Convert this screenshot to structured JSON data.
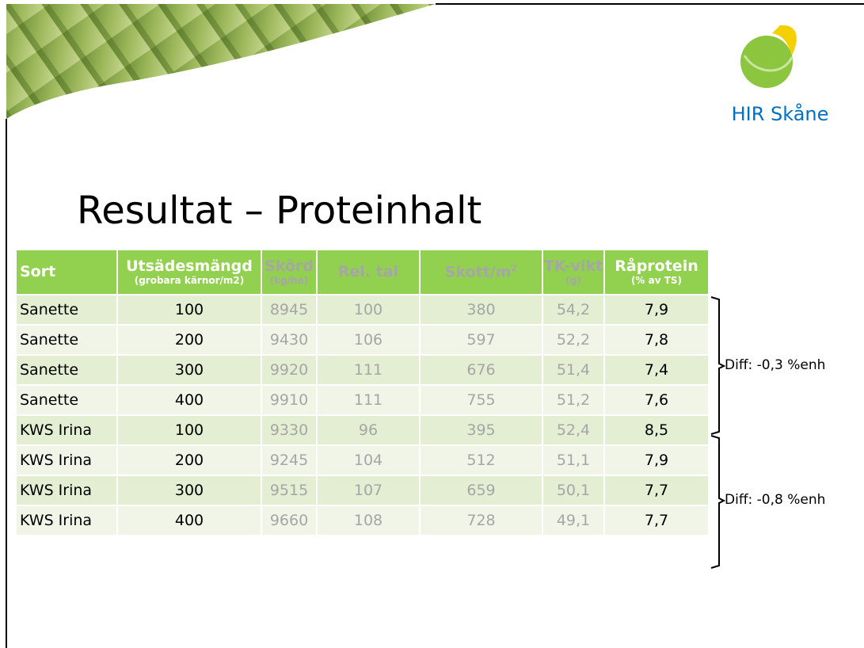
{
  "logo": {
    "text": "HIR Skåne"
  },
  "title": "Resultat – Proteinhalt",
  "table": {
    "header": [
      {
        "title": "Sort"
      },
      {
        "title": "Utsädesmängd",
        "sub": "(grobara kärnor/m2)"
      },
      {
        "title": "Skörd",
        "sub": "(kg/ha)"
      },
      {
        "title": "Rel. tal"
      },
      {
        "title": "Skott/m",
        "sup": "2"
      },
      {
        "title": "TK-vikt",
        "sub": "(g)"
      },
      {
        "title": "Råprotein",
        "sub": "(% av TS)"
      }
    ],
    "rows": [
      [
        "Sanette",
        "100",
        "8945",
        "100",
        "380",
        "54,2",
        "7,9"
      ],
      [
        "Sanette",
        "200",
        "9430",
        "106",
        "597",
        "52,2",
        "7,8"
      ],
      [
        "Sanette",
        "300",
        "9920",
        "111",
        "676",
        "51,4",
        "7,4"
      ],
      [
        "Sanette",
        "400",
        "9910",
        "111",
        "755",
        "51,2",
        "7,6"
      ],
      [
        "KWS Irina",
        "100",
        "9330",
        "96",
        "395",
        "52,4",
        "8,5"
      ],
      [
        "KWS Irina",
        "200",
        "9245",
        "104",
        "512",
        "51,1",
        "7,9"
      ],
      [
        "KWS Irina",
        "300",
        "9515",
        "107",
        "659",
        "50,1",
        "7,7"
      ],
      [
        "KWS Irina",
        "400",
        "9660",
        "108",
        "728",
        "49,1",
        "7,7"
      ]
    ]
  },
  "annotations": [
    "Diff: -0,3 %enh",
    "Diff: -0,8 %enh"
  ]
}
